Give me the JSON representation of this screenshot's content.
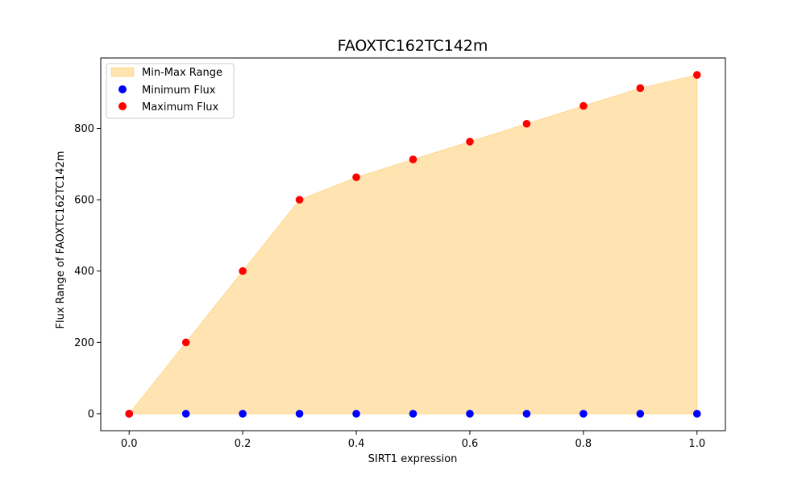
{
  "chart_data": {
    "type": "scatter",
    "title": "FAOXTC162TC142m",
    "xlabel": "SIRT1 expression",
    "ylabel": "Flux Range of FAOXTC162TC142m",
    "xlim": [
      -0.05,
      1.05
    ],
    "ylim": [
      -47.5,
      997.5
    ],
    "xticks": [
      0.0,
      0.2,
      0.4,
      0.6,
      0.8,
      1.0
    ],
    "xtick_labels": [
      "0.0",
      "0.2",
      "0.4",
      "0.6",
      "0.8",
      "1.0"
    ],
    "yticks": [
      0,
      200,
      400,
      600,
      800
    ],
    "ytick_labels": [
      "0",
      "200",
      "400",
      "600",
      "800"
    ],
    "x": [
      0.0,
      0.1,
      0.2,
      0.3,
      0.4,
      0.5,
      0.6,
      0.7,
      0.8,
      0.9,
      1.0
    ],
    "series": [
      {
        "name": "Minimum Flux",
        "color": "#0000ff",
        "values": [
          0,
          0,
          0,
          0,
          0,
          0,
          0,
          0,
          0,
          0,
          0
        ]
      },
      {
        "name": "Maximum Flux",
        "color": "#ff0000",
        "values": [
          0,
          200,
          400,
          600,
          663,
          713,
          763,
          813,
          863,
          913,
          950
        ]
      }
    ],
    "range_fill": {
      "name": "Min-Max Range",
      "color": "#ffa500",
      "opacity": 0.3
    },
    "grid": false,
    "legend_position": "top-left"
  }
}
